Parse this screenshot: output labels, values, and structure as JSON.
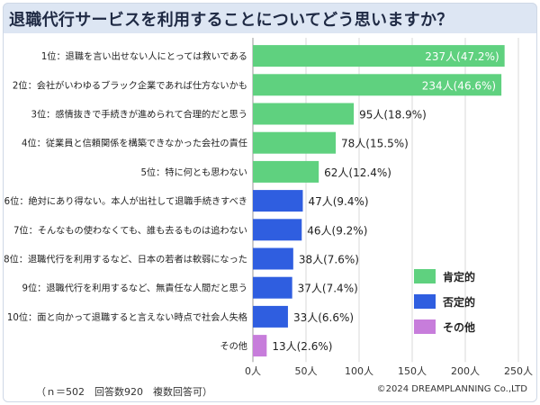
{
  "title": "退職代行サービスを利用することについてどう思いますか？",
  "footer": {
    "note": "（ｎ＝502　回答数920　複数回答可）",
    "copyright": "©2024 DREAMPLANNING Co.,LTD"
  },
  "colors": {
    "positive": "#5fd17f",
    "negative": "#2f5ee0",
    "other": "#c77ddb",
    "header": "#dde6f3"
  },
  "legend": [
    {
      "label": "肯定的",
      "group": "positive"
    },
    {
      "label": "否定的",
      "group": "negative"
    },
    {
      "label": "その他",
      "group": "other"
    }
  ],
  "chart_data": {
    "type": "bar",
    "orientation": "horizontal",
    "title": "退職代行サービスを利用することについてどう思いますか？",
    "xlim": [
      0,
      250
    ],
    "x_ticks": [
      {
        "value": 0,
        "label": "0人"
      },
      {
        "value": 50,
        "label": "50人"
      },
      {
        "value": 100,
        "label": "100人"
      },
      {
        "value": 150,
        "label": "150人"
      },
      {
        "value": 200,
        "label": "200人"
      },
      {
        "value": 250,
        "label": "250人"
      }
    ],
    "grid": true,
    "legend_position": "bottom-right",
    "categories": [
      "1位：退職を言い出せない人にとっては救いである",
      "2位：会社がいわゆるブラック企業であれば仕方ないかも",
      "3位：感情抜きで手続きが進められて合理的だと思う",
      "4位：従業員と信頼関係を構築できなかった会社の責任",
      "5位：特に何とも思わない",
      "6位：絶対にあり得ない。本人が出社して退職手続きすべき",
      "7位：そんなもの使わなくても、誰も去るものは追わない",
      "8位：退職代行を利用するなど、日本の若者は軟弱になった",
      "9位：退職代行を利用するなど、無責任な人間だと思う",
      "10位：面と向かって退職すると言えない時点で社会人失格",
      "その他"
    ],
    "values": [
      237,
      234,
      95,
      78,
      62,
      47,
      46,
      38,
      37,
      33,
      13
    ],
    "data_labels": [
      "237人(47.2%)",
      "234人(46.6%)",
      "95人(18.9%)",
      "78人(15.5%)",
      "62人(12.4%)",
      "47人(9.4%)",
      "46人(9.2%)",
      "38人(7.6%)",
      "37人(7.4%)",
      "33人(6.6%)",
      "13人(2.6%)"
    ],
    "groups": [
      "positive",
      "positive",
      "positive",
      "positive",
      "positive",
      "negative",
      "negative",
      "negative",
      "negative",
      "negative",
      "other"
    ]
  }
}
